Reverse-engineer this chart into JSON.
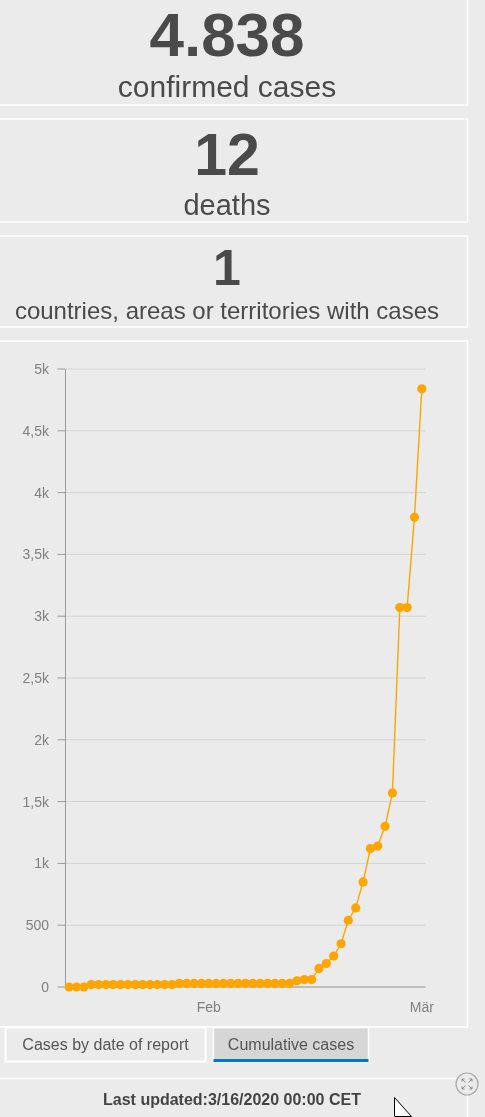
{
  "chart_data": [
    {
      "type": "other",
      "annotations": [
        "4.838",
        "confirmed cases",
        "12",
        "deaths",
        "1",
        "countries, areas or territories with cases"
      ]
    },
    {
      "type": "line",
      "categories": [
        null,
        null,
        null,
        null,
        null,
        null,
        null,
        null,
        null,
        null,
        null,
        null,
        null,
        null,
        null,
        null,
        null,
        null,
        null,
        "Feb",
        null,
        null,
        null,
        null,
        null,
        null,
        null,
        null,
        null,
        null,
        null,
        null,
        null,
        null,
        null,
        null,
        null,
        null,
        null,
        null,
        null,
        null,
        null,
        null,
        null,
        null,
        null,
        null,
        "Mär"
      ],
      "series": [
        {
          "color": "#ffa500",
          "values": [
            0,
            0,
            0,
            20,
            20,
            20,
            20,
            20,
            20,
            20,
            20,
            20,
            20,
            20,
            20,
            30,
            30,
            30,
            30,
            30,
            30,
            30,
            30,
            30,
            30,
            30,
            30,
            30,
            30,
            30,
            30,
            50,
            60,
            60,
            150,
            190,
            250,
            350,
            540,
            640,
            850,
            1120,
            1140,
            1300,
            1570,
            3070,
            3070,
            3800,
            4840
          ]
        }
      ],
      "ylim": [
        0,
        5000
      ],
      "yticks": [
        0,
        500,
        {
          "value": 1000,
          "label": "1k"
        },
        {
          "value": 1500,
          "label": "1,5k"
        },
        {
          "value": 2000,
          "label": "2k"
        },
        {
          "value": 2500,
          "label": "2,5k"
        },
        {
          "value": 3000,
          "label": "3k"
        },
        {
          "value": 3500,
          "label": "3,5k"
        },
        {
          "value": 4000,
          "label": "4k"
        },
        {
          "value": 4500,
          "label": "4,5k"
        },
        {
          "value": 5000,
          "label": "5k"
        }
      ],
      "grid": "y",
      "marker": "circle",
      "annotations": [
        "Cases by date of report",
        "Cumulative cases",
        "Last updated:3/16/2020 00:00 CET"
      ]
    }
  ]
}
